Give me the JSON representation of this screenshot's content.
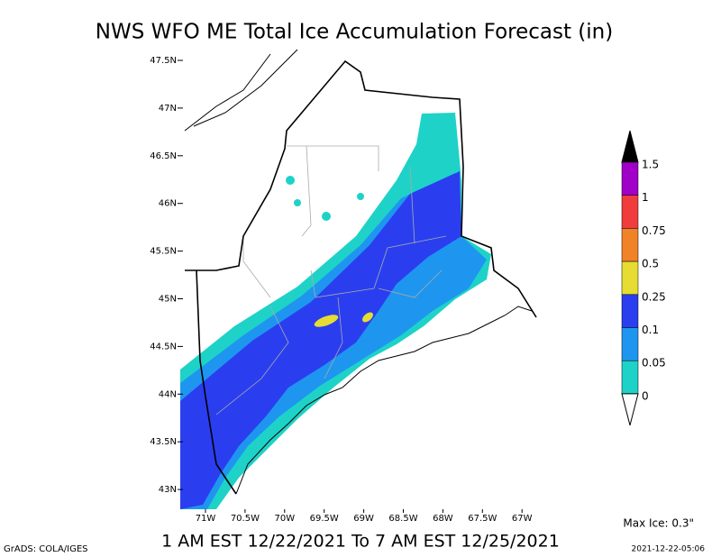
{
  "header": {
    "title": "NWS WFO ME Total Ice Accumulation Forecast (in)"
  },
  "map": {
    "lat_labels": [
      "47.5N",
      "47N",
      "46.5N",
      "46N",
      "45.5N",
      "45N",
      "44.5N",
      "44N",
      "43.5N",
      "43N"
    ],
    "lon_labels": [
      "71W",
      "70.5W",
      "70W",
      "69.5W",
      "69W",
      "68.5W",
      "68W",
      "67.5W",
      "67W"
    ]
  },
  "legend": {
    "top_color": "#000000",
    "items": [
      {
        "label": "1.5",
        "color": "#a000c8"
      },
      {
        "label": "1",
        "color": "#f03c3c"
      },
      {
        "label": "0.75",
        "color": "#f08228"
      },
      {
        "label": "0.5",
        "color": "#e6dc32"
      },
      {
        "label": "0.25",
        "color": "#2a3ef0"
      },
      {
        "label": "0.1",
        "color": "#1e96f0"
      },
      {
        "label": "0.05",
        "color": "#1ed2c8"
      },
      {
        "label": "0",
        "color": "#ffffff"
      }
    ]
  },
  "footer": {
    "max_ice": "Max Ice: 0.3\"",
    "period": "1 AM EST 12/22/2021 To 7 AM EST 12/25/2021",
    "credit": "GrADS: COLA/IGES",
    "timestamp": "2021-12-22-05:06"
  }
}
